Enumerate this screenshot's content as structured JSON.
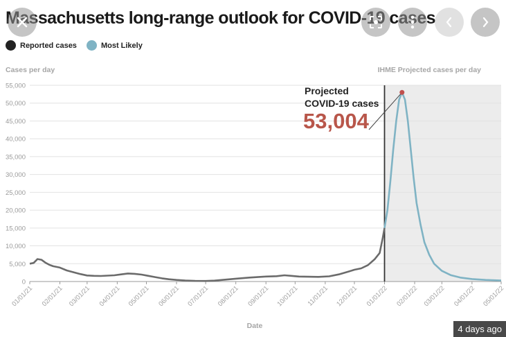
{
  "overlay": {
    "timestamp": "4 days ago",
    "close_icon": "close-icon",
    "lens_icon": "lens-icon",
    "more_icon": "more-vertical-icon",
    "prev_icon": "chevron-left-icon",
    "next_icon": "chevron-right-icon"
  },
  "chart_data": {
    "type": "line",
    "title": "Massachusetts long-range outlook for COVID-19 cases",
    "ylabel": "Cases per day",
    "xlabel": "Date",
    "projection_label": "IHME Projected cases per day",
    "annotation": {
      "line1": "Projected",
      "line2": "COVID-19 cases",
      "value_text": "53,004",
      "date": "2022-01-19",
      "value": 53004
    },
    "ylim": [
      0,
      55000
    ],
    "yticks": [
      0,
      5000,
      10000,
      15000,
      20000,
      25000,
      30000,
      35000,
      40000,
      45000,
      50000,
      55000
    ],
    "ytick_labels": [
      "0",
      "5,000",
      "10,000",
      "15,000",
      "20,000",
      "25,000",
      "30,000",
      "35,000",
      "40,000",
      "45,000",
      "50,000",
      "55,000"
    ],
    "xlim": [
      "2021-01-01",
      "2022-05-01"
    ],
    "xtick_dates": [
      "2021-01-01",
      "2021-02-01",
      "2021-03-01",
      "2021-04-01",
      "2021-05-01",
      "2021-06-01",
      "2021-07-01",
      "2021-08-01",
      "2021-09-01",
      "2021-10-01",
      "2021-11-01",
      "2021-12-01",
      "2022-01-01",
      "2022-02-01",
      "2022-03-01",
      "2022-04-01",
      "2022-05-01"
    ],
    "xtick_labels": [
      "01/01/21",
      "02/01/21",
      "03/01/21",
      "04/01/21",
      "05/01/21",
      "06/01/21",
      "07/01/21",
      "08/01/21",
      "09/01/21",
      "10/01/21",
      "11/01/21",
      "12/01/21",
      "01/01/22",
      "02/01/22",
      "03/01/22",
      "04/01/22",
      "05/01/22"
    ],
    "projection_start": "2022-01-01",
    "grid": true,
    "legend_position": "top-left",
    "series": [
      {
        "name": "Reported cases",
        "color": "#222222",
        "line_color": "#6b6b6b",
        "points": [
          [
            "2021-01-01",
            5000
          ],
          [
            "2021-01-05",
            5200
          ],
          [
            "2021-01-09",
            6300
          ],
          [
            "2021-01-13",
            6100
          ],
          [
            "2021-01-17",
            5300
          ],
          [
            "2021-01-21",
            4700
          ],
          [
            "2021-01-25",
            4300
          ],
          [
            "2021-02-01",
            3900
          ],
          [
            "2021-02-08",
            3100
          ],
          [
            "2021-02-15",
            2600
          ],
          [
            "2021-02-22",
            2100
          ],
          [
            "2021-03-01",
            1700
          ],
          [
            "2021-03-08",
            1600
          ],
          [
            "2021-03-15",
            1550
          ],
          [
            "2021-03-22",
            1650
          ],
          [
            "2021-03-29",
            1750
          ],
          [
            "2021-04-05",
            2000
          ],
          [
            "2021-04-12",
            2250
          ],
          [
            "2021-04-19",
            2150
          ],
          [
            "2021-04-26",
            1950
          ],
          [
            "2021-05-03",
            1600
          ],
          [
            "2021-05-10",
            1250
          ],
          [
            "2021-05-17",
            900
          ],
          [
            "2021-05-24",
            650
          ],
          [
            "2021-06-01",
            450
          ],
          [
            "2021-06-10",
            300
          ],
          [
            "2021-06-20",
            200
          ],
          [
            "2021-07-01",
            150
          ],
          [
            "2021-07-10",
            250
          ],
          [
            "2021-07-20",
            500
          ],
          [
            "2021-08-01",
            800
          ],
          [
            "2021-08-15",
            1100
          ],
          [
            "2021-09-01",
            1400
          ],
          [
            "2021-09-12",
            1500
          ],
          [
            "2021-09-20",
            1750
          ],
          [
            "2021-09-27",
            1600
          ],
          [
            "2021-10-05",
            1400
          ],
          [
            "2021-10-15",
            1350
          ],
          [
            "2021-10-25",
            1300
          ],
          [
            "2021-11-05",
            1450
          ],
          [
            "2021-11-15",
            2000
          ],
          [
            "2021-11-25",
            2800
          ],
          [
            "2021-12-01",
            3300
          ],
          [
            "2021-12-08",
            3700
          ],
          [
            "2021-12-15",
            4600
          ],
          [
            "2021-12-22",
            6300
          ],
          [
            "2021-12-27",
            8000
          ],
          [
            "2021-12-30",
            12000
          ],
          [
            "2022-01-01",
            15000
          ]
        ]
      },
      {
        "name": "Most Likely",
        "color": "#7fb3c4",
        "points": [
          [
            "2022-01-01",
            15000
          ],
          [
            "2022-01-04",
            20000
          ],
          [
            "2022-01-07",
            28000
          ],
          [
            "2022-01-10",
            37000
          ],
          [
            "2022-01-13",
            45000
          ],
          [
            "2022-01-16",
            51000
          ],
          [
            "2022-01-19",
            53004
          ],
          [
            "2022-01-22",
            51000
          ],
          [
            "2022-01-25",
            45000
          ],
          [
            "2022-01-28",
            37000
          ],
          [
            "2022-01-31",
            29000
          ],
          [
            "2022-02-03",
            22000
          ],
          [
            "2022-02-07",
            16000
          ],
          [
            "2022-02-11",
            11000
          ],
          [
            "2022-02-16",
            7500
          ],
          [
            "2022-02-21",
            5000
          ],
          [
            "2022-03-01",
            3000
          ],
          [
            "2022-03-10",
            1800
          ],
          [
            "2022-03-20",
            1100
          ],
          [
            "2022-04-01",
            700
          ],
          [
            "2022-04-15",
            450
          ],
          [
            "2022-05-01",
            300
          ]
        ]
      }
    ]
  }
}
